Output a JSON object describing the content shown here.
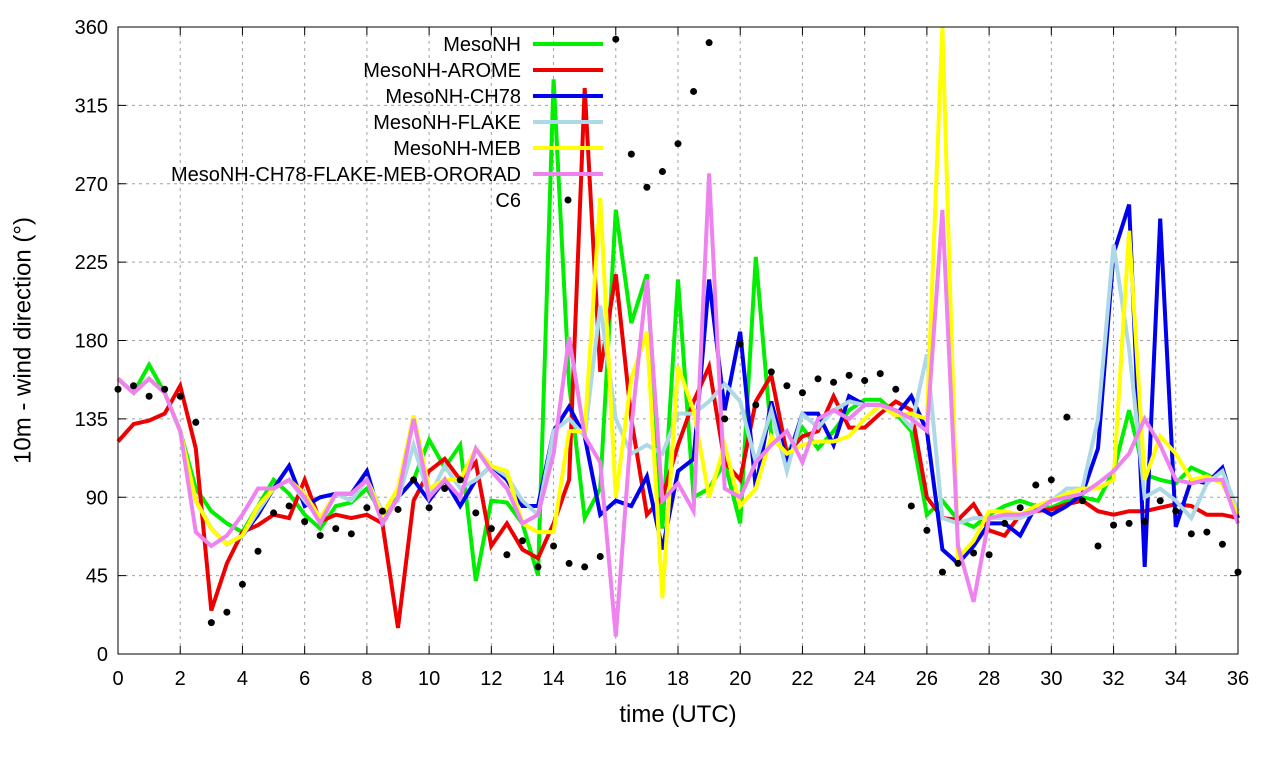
{
  "chart_data": {
    "type": "line",
    "title": "",
    "xlabel": "time (UTC)",
    "ylabel": "10m - wind direction (°)",
    "xlim": [
      0,
      36
    ],
    "ylim": [
      0,
      360
    ],
    "xticks": [
      0,
      2,
      4,
      6,
      8,
      10,
      12,
      14,
      16,
      18,
      20,
      22,
      24,
      26,
      28,
      30,
      32,
      34,
      36
    ],
    "yticks": [
      0,
      45,
      90,
      135,
      180,
      225,
      270,
      315,
      360
    ],
    "grid": true,
    "legend_position": "top-left",
    "x": [
      0,
      0.5,
      1,
      1.5,
      2,
      2.5,
      3,
      3.5,
      4,
      4.5,
      5,
      5.5,
      6,
      6.5,
      7,
      7.5,
      8,
      8.5,
      9,
      9.5,
      10,
      10.5,
      11,
      11.5,
      12,
      12.5,
      13,
      13.5,
      14,
      14.5,
      15,
      15.5,
      16,
      16.5,
      17,
      17.5,
      18,
      18.5,
      19,
      19.5,
      20,
      20.5,
      21,
      21.5,
      22,
      22.5,
      23,
      23.5,
      24,
      24.5,
      25,
      25.5,
      26,
      26.5,
      27,
      27.5,
      28,
      28.5,
      29,
      29.5,
      30,
      30.5,
      31,
      31.5,
      32,
      32.5,
      33,
      33.5,
      34,
      34.5,
      35,
      35.5,
      36
    ],
    "series": [
      {
        "name": "MesoNH",
        "color": "#00ee00",
        "style": "line",
        "values": [
          158,
          150,
          166,
          150,
          128,
          95,
          82,
          75,
          70,
          85,
          100,
          92,
          80,
          72,
          85,
          87,
          95,
          80,
          90,
          100,
          123,
          107,
          120,
          42,
          88,
          87,
          75,
          45,
          330,
          155,
          78,
          95,
          255,
          190,
          218,
          72,
          215,
          90,
          95,
          110,
          75,
          228,
          125,
          115,
          130,
          118,
          128,
          140,
          146,
          146,
          138,
          128,
          80,
          88,
          77,
          73,
          80,
          85,
          88,
          85,
          84,
          88,
          90,
          88,
          105,
          140,
          103,
          100,
          98,
          107,
          103,
          98,
          80
        ]
      },
      {
        "name": "MesoNH-AROME",
        "color": "#ee0000",
        "style": "line",
        "values": [
          122,
          132,
          134,
          138,
          154,
          118,
          25,
          52,
          70,
          74,
          80,
          78,
          100,
          76,
          80,
          78,
          80,
          75,
          15,
          88,
          105,
          112,
          100,
          110,
          62,
          75,
          60,
          55,
          75,
          100,
          325,
          162,
          218,
          135,
          80,
          90,
          120,
          145,
          165,
          110,
          100,
          145,
          160,
          115,
          125,
          128,
          148,
          130,
          130,
          138,
          145,
          140,
          90,
          78,
          77,
          86,
          71,
          68,
          80,
          82,
          83,
          86,
          88,
          82,
          80,
          82,
          82,
          84,
          86,
          85,
          80,
          80,
          78
        ]
      },
      {
        "name": "MesoNH-CH78",
        "color": "#0000ee",
        "style": "line",
        "values": [
          158,
          150,
          158,
          150,
          128,
          88,
          72,
          63,
          68,
          80,
          95,
          108,
          85,
          90,
          92,
          92,
          105,
          75,
          90,
          100,
          88,
          100,
          85,
          100,
          108,
          100,
          85,
          85,
          128,
          142,
          125,
          80,
          88,
          85,
          102,
          60,
          105,
          112,
          215,
          140,
          185,
          95,
          145,
          110,
          138,
          138,
          120,
          148,
          143,
          143,
          137,
          148,
          128,
          60,
          52,
          62,
          75,
          75,
          68,
          85,
          80,
          85,
          92,
          118,
          230,
          258,
          50,
          250,
          73,
          100,
          98,
          107,
          78
        ]
      },
      {
        "name": "MesoNH-FLAKE",
        "color": "#add8e6",
        "style": "line",
        "values": [
          158,
          150,
          158,
          150,
          128,
          88,
          72,
          63,
          68,
          82,
          95,
          100,
          88,
          78,
          92,
          88,
          100,
          82,
          88,
          120,
          90,
          108,
          95,
          100,
          108,
          102,
          88,
          80,
          128,
          135,
          125,
          200,
          135,
          115,
          120,
          115,
          138,
          138,
          145,
          155,
          145,
          110,
          140,
          105,
          138,
          130,
          140,
          145,
          143,
          143,
          140,
          130,
          172,
          78,
          75,
          78,
          78,
          78,
          78,
          82,
          88,
          95,
          95,
          135,
          235,
          175,
          90,
          95,
          88,
          78,
          98,
          105,
          82
        ]
      },
      {
        "name": "MesoNH-MEB",
        "color": "#ffff00",
        "style": "line",
        "values": [
          158,
          150,
          158,
          150,
          128,
          88,
          72,
          63,
          68,
          85,
          95,
          100,
          92,
          78,
          92,
          92,
          100,
          80,
          95,
          137,
          95,
          100,
          100,
          118,
          108,
          105,
          75,
          70,
          70,
          128,
          128,
          262,
          90,
          158,
          185,
          32,
          165,
          140,
          90,
          120,
          85,
          95,
          125,
          115,
          120,
          122,
          122,
          125,
          135,
          143,
          137,
          138,
          135,
          360,
          55,
          65,
          82,
          82,
          80,
          85,
          88,
          92,
          95,
          95,
          100,
          243,
          100,
          125,
          115,
          100,
          102,
          98,
          80
        ]
      },
      {
        "name": "MesoNH-CH78-FLAKE-MEB-ORORAD",
        "color": "#ee82ee",
        "style": "line",
        "values": [
          158,
          150,
          158,
          150,
          128,
          70,
          62,
          68,
          80,
          95,
          95,
          100,
          90,
          75,
          92,
          92,
          100,
          75,
          90,
          135,
          90,
          100,
          90,
          118,
          105,
          95,
          75,
          80,
          115,
          182,
          125,
          110,
          10,
          130,
          215,
          88,
          98,
          82,
          276,
          95,
          90,
          110,
          120,
          128,
          110,
          135,
          140,
          135,
          143,
          143,
          140,
          135,
          128,
          255,
          62,
          30,
          78,
          80,
          80,
          82,
          88,
          90,
          92,
          98,
          105,
          115,
          135,
          120,
          100,
          98,
          100,
          100,
          75
        ]
      },
      {
        "name": "C6",
        "color": "#000000",
        "style": "points",
        "x": [
          0,
          0.5,
          1,
          1.5,
          2,
          2.5,
          3,
          3.5,
          4,
          4.5,
          5,
          5.5,
          6,
          6.5,
          7,
          7.5,
          8,
          8.5,
          9,
          9.5,
          10,
          10.5,
          11,
          11.5,
          12,
          12.5,
          13,
          13.5,
          14,
          14.5,
          15,
          15.5,
          16,
          16.5,
          17,
          17.5,
          18,
          18.5,
          19,
          19.5,
          20,
          20.5,
          21,
          21.5,
          22,
          22.5,
          23,
          23.5,
          24,
          24.5,
          25,
          25.5,
          26,
          26.5,
          27,
          27.5,
          28,
          28.5,
          29,
          29.5,
          30,
          30.5,
          31,
          31.5,
          32,
          32.5,
          33,
          33.5,
          34,
          34.5,
          35,
          35.5,
          36
        ],
        "values": [
          152,
          154,
          148,
          152,
          148,
          133,
          18,
          24,
          40,
          59,
          81,
          85,
          76,
          68,
          72,
          69,
          84,
          82,
          83,
          100,
          84,
          95,
          100,
          81,
          72,
          57,
          65,
          50,
          62,
          52,
          50,
          56,
          353,
          287,
          268,
          277,
          293,
          323,
          351,
          135,
          178,
          143,
          162,
          154,
          150,
          158,
          156,
          160,
          157,
          161,
          152,
          85,
          71,
          47,
          52,
          58,
          57,
          75,
          84,
          97,
          100,
          136,
          88,
          62,
          74,
          75,
          76,
          88,
          82,
          69,
          70,
          63,
          47
        ]
      }
    ]
  }
}
